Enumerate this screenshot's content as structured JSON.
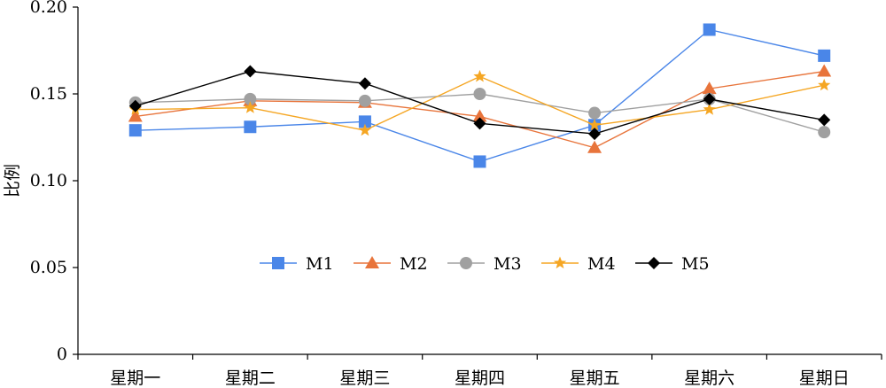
{
  "chart_data": {
    "type": "line",
    "categories": [
      "星期一",
      "星期二",
      "星期三",
      "星期四",
      "星期五",
      "星期六",
      "星期日"
    ],
    "ylabel": "比例",
    "xlabel": "",
    "ylim": [
      0,
      0.2
    ],
    "yticks": [
      "0",
      "0.05",
      "0.10",
      "0.15",
      "0.20"
    ],
    "ytick_values": [
      0,
      0.05,
      0.1,
      0.15,
      0.2
    ],
    "grid": false,
    "legend_position": "center",
    "series": [
      {
        "name": "M1",
        "color": "#4a86e8",
        "marker": "square",
        "values": [
          0.129,
          0.131,
          0.134,
          0.111,
          0.132,
          0.187,
          0.172
        ]
      },
      {
        "name": "M2",
        "color": "#e8743b",
        "marker": "triangle",
        "values": [
          0.137,
          0.146,
          0.145,
          0.137,
          0.119,
          0.153,
          0.163
        ]
      },
      {
        "name": "M3",
        "color": "#a0a0a0",
        "marker": "circle",
        "values": [
          0.145,
          0.147,
          0.146,
          0.15,
          0.139,
          0.147,
          0.128
        ]
      },
      {
        "name": "M4",
        "color": "#f5a623",
        "marker": "star",
        "values": [
          0.141,
          0.142,
          0.129,
          0.16,
          0.132,
          0.141,
          0.155
        ]
      },
      {
        "name": "M5",
        "color": "#000000",
        "marker": "diamond",
        "values": [
          0.143,
          0.163,
          0.156,
          0.133,
          0.127,
          0.147,
          0.135
        ]
      }
    ]
  }
}
